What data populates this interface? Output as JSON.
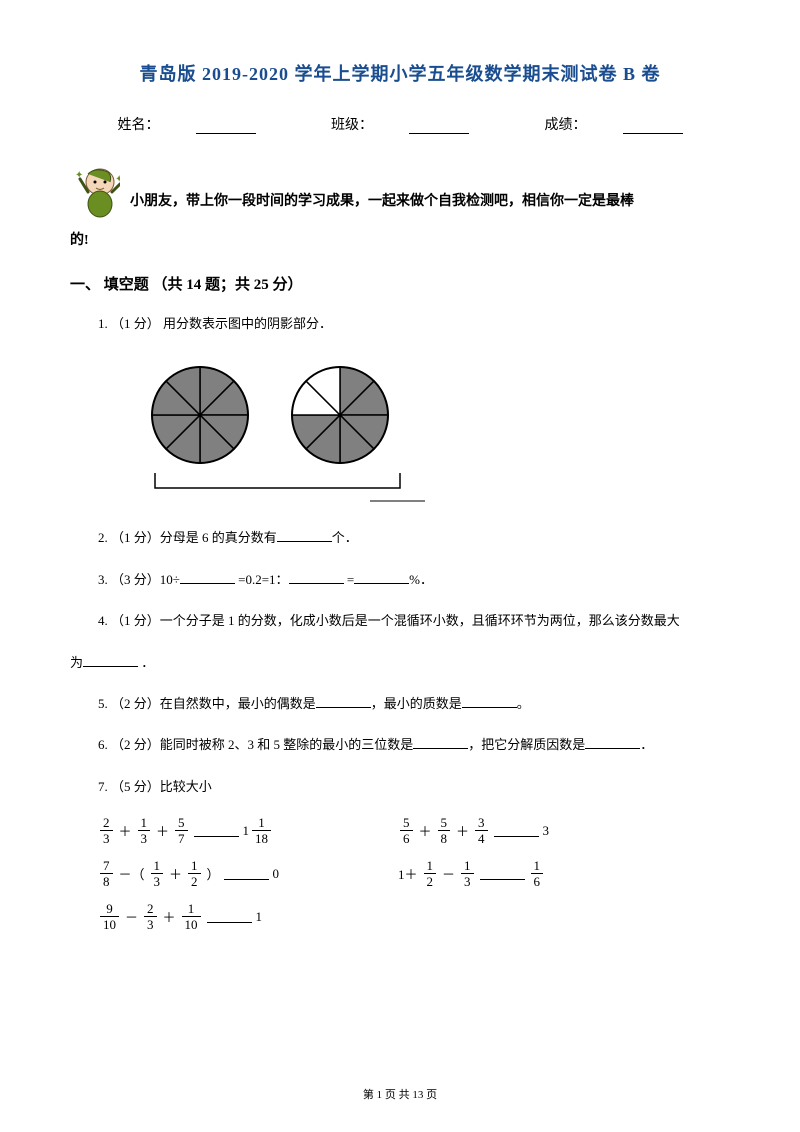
{
  "title": "青岛版 2019-2020 学年上学期小学五年级数学期末测试卷 B 卷",
  "info": {
    "name_label": "姓名：",
    "class_label": "班级：",
    "score_label": "成绩："
  },
  "encourage_line1": "小朋友，带上你一段时间的学习成果，一起来做个自我检测吧，相信你一定是最棒",
  "encourage_line2": "的!",
  "section1": "一、 填空题 （共 14 题；共 25 分）",
  "q1": "1. （1 分）  用分数表示图中的阴影部分．",
  "q2_pre": "2. （1 分）分母是 6 的真分数有",
  "q2_post": "个．",
  "q3_pre": "3. （3 分）10÷",
  "q3_mid1": " =0.2=1：",
  "q3_mid2": " =",
  "q3_post": "%．",
  "q4_pre": "4. （1 分）一个分子是 1 的分数，化成小数后是一个混循环小数，且循环环节为两位，那么该分数最大",
  "q4_cont": "为",
  "q4_post": " ．",
  "q5_pre": "5. （2 分）在自然数中，最小的偶数是",
  "q5_mid": "，最小的质数是",
  "q5_post": "。",
  "q6_pre": "6. （2 分）能同时被称 2、3 和 5 整除的最小的三位数是",
  "q6_mid": "，把它分解质因数是",
  "q6_post": "．",
  "q7": "7. （5 分）比较大小",
  "pie": {
    "circle1_slices": 8,
    "circle1_shaded": [
      0,
      1,
      2,
      3,
      4,
      5,
      6,
      7
    ],
    "circle2_slices": 8,
    "circle2_shaded": [
      0,
      1,
      2,
      3,
      4,
      5
    ],
    "fill": "#808080",
    "stroke": "#000000"
  },
  "compare": {
    "r1a": {
      "t1": {
        "n": "2",
        "d": "3"
      },
      "op1": "＋",
      "t2": {
        "n": "1",
        "d": "3"
      },
      "op2": "＋",
      "t3": {
        "n": "5",
        "d": "7"
      },
      "rhs": {
        "w": "1",
        "n": "1",
        "d": "18"
      }
    },
    "r1b": {
      "t1": {
        "n": "5",
        "d": "6"
      },
      "op1": "＋",
      "t2": {
        "n": "5",
        "d": "8"
      },
      "op2": "＋",
      "t3": {
        "n": "3",
        "d": "4"
      },
      "rhs_text": "3"
    },
    "r2a": {
      "t1": {
        "n": "7",
        "d": "8"
      },
      "op1": "－（",
      "t2": {
        "n": "1",
        "d": "3"
      },
      "op2": "＋",
      "t3": {
        "n": "1",
        "d": "2"
      },
      "close": "）",
      "rhs_text": "0"
    },
    "r2b": {
      "pre": "1＋",
      "t1": {
        "n": "1",
        "d": "2"
      },
      "op1": "－",
      "t2": {
        "n": "1",
        "d": "3"
      },
      "rhs": {
        "n": "1",
        "d": "6"
      }
    },
    "r3a": {
      "t1": {
        "n": "9",
        "d": "10"
      },
      "op1": "－",
      "t2": {
        "n": "2",
        "d": "3"
      },
      "op2": "＋",
      "t3": {
        "n": "1",
        "d": "10"
      },
      "rhs_text": "1"
    }
  },
  "footer": {
    "pre": "第 ",
    "cur": "1",
    "mid": " 页 共 ",
    "total": "13",
    "post": " 页"
  }
}
